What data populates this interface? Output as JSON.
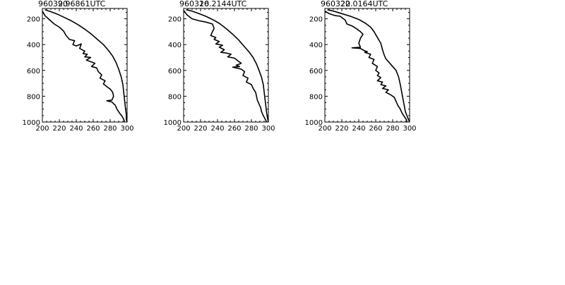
{
  "chart_data": [
    {
      "type": "line",
      "title_left": "960320",
      "title_right": "9.96861UTC",
      "xlim": [
        200,
        300
      ],
      "ylim": [
        1000,
        120
      ],
      "y_reversed": true,
      "xticks": [
        200,
        220,
        240,
        260,
        280,
        300
      ],
      "yticks": [
        200,
        400,
        600,
        800,
        1000
      ],
      "series": [
        {
          "points": [
            [
              203,
              130
            ],
            [
              210,
              145
            ],
            [
              218,
              165
            ],
            [
              226,
              190
            ],
            [
              234,
              215
            ],
            [
              242,
              245
            ],
            [
              250,
              280
            ],
            [
              258,
              320
            ],
            [
              265,
              360
            ],
            [
              272,
              400
            ],
            [
              278,
              445
            ],
            [
              283,
              490
            ],
            [
              287,
              540
            ],
            [
              290,
              590
            ],
            [
              293,
              650
            ],
            [
              295,
              710
            ],
            [
              296,
              770
            ],
            [
              297,
              830
            ],
            [
              298,
              890
            ],
            [
              299,
              940
            ],
            [
              299,
              980
            ],
            [
              300,
              1000
            ]
          ]
        },
        {
          "points": [
            [
              200,
              140
            ],
            [
              203,
              175
            ],
            [
              208,
              205
            ],
            [
              214,
              240
            ],
            [
              220,
              265
            ],
            [
              225,
              295
            ],
            [
              228,
              330
            ],
            [
              232,
              360
            ],
            [
              238,
              370
            ],
            [
              236,
              400
            ],
            [
              240,
              410
            ],
            [
              246,
              395
            ],
            [
              244,
              430
            ],
            [
              250,
              450
            ],
            [
              248,
              470
            ],
            [
              253,
              475
            ],
            [
              250,
              495
            ],
            [
              257,
              500
            ],
            [
              252,
              520
            ],
            [
              258,
              535
            ],
            [
              262,
              545
            ],
            [
              258,
              570
            ],
            [
              264,
              580
            ],
            [
              266,
              610
            ],
            [
              270,
              635
            ],
            [
              268,
              660
            ],
            [
              274,
              680
            ],
            [
              272,
              705
            ],
            [
              276,
              725
            ],
            [
              280,
              745
            ],
            [
              283,
              770
            ],
            [
              284,
              800
            ],
            [
              282,
              830
            ],
            [
              276,
              835
            ],
            [
              282,
              845
            ],
            [
              286,
              870
            ],
            [
              288,
              900
            ],
            [
              291,
              930
            ],
            [
              294,
              955
            ],
            [
              296,
              980
            ],
            [
              297,
              1000
            ]
          ]
        }
      ]
    },
    {
      "type": "line",
      "title_left": "960320",
      "title_right": "16.2144UTC",
      "xlim": [
        200,
        300
      ],
      "ylim": [
        1000,
        120
      ],
      "y_reversed": true,
      "xticks": [
        200,
        220,
        240,
        260,
        280,
        300
      ],
      "yticks": [
        200,
        400,
        600,
        800,
        1000
      ],
      "series": [
        {
          "points": [
            [
              203,
              130
            ],
            [
              210,
              140
            ],
            [
              218,
              160
            ],
            [
              226,
              180
            ],
            [
              234,
              205
            ],
            [
              242,
              235
            ],
            [
              250,
              275
            ],
            [
              258,
              320
            ],
            [
              265,
              365
            ],
            [
              271,
              410
            ],
            [
              277,
              455
            ],
            [
              282,
              500
            ],
            [
              286,
              550
            ],
            [
              289,
              600
            ],
            [
              292,
              655
            ],
            [
              294,
              710
            ],
            [
              295,
              765
            ],
            [
              296,
              820
            ],
            [
              297,
              875
            ],
            [
              298,
              930
            ],
            [
              299,
              970
            ],
            [
              300,
              1000
            ]
          ]
        },
        {
          "points": [
            [
              200,
              135
            ],
            [
              204,
              170
            ],
            [
              210,
              200
            ],
            [
              218,
              215
            ],
            [
              226,
              225
            ],
            [
              234,
              240
            ],
            [
              236,
              275
            ],
            [
              234,
              300
            ],
            [
              232,
              330
            ],
            [
              238,
              345
            ],
            [
              236,
              360
            ],
            [
              242,
              375
            ],
            [
              238,
              395
            ],
            [
              246,
              405
            ],
            [
              242,
              420
            ],
            [
              248,
              440
            ],
            [
              244,
              460
            ],
            [
              250,
              465
            ],
            [
              256,
              475
            ],
            [
              252,
              495
            ],
            [
              260,
              505
            ],
            [
              264,
              525
            ],
            [
              268,
              545
            ],
            [
              262,
              560
            ],
            [
              266,
              570
            ],
            [
              258,
              575
            ],
            [
              268,
              590
            ],
            [
              272,
              610
            ],
            [
              270,
              640
            ],
            [
              276,
              660
            ],
            [
              274,
              690
            ],
            [
              280,
              710
            ],
            [
              282,
              740
            ],
            [
              285,
              770
            ],
            [
              286,
              800
            ],
            [
              287,
              830
            ],
            [
              289,
              860
            ],
            [
              291,
              890
            ],
            [
              292,
              920
            ],
            [
              294,
              950
            ],
            [
              296,
              975
            ],
            [
              298,
              1000
            ]
          ]
        }
      ]
    },
    {
      "type": "line",
      "title_left": "960320",
      "title_right": "22.0164UTC",
      "xlim": [
        200,
        300
      ],
      "ylim": [
        1000,
        120
      ],
      "y_reversed": true,
      "xticks": [
        200,
        220,
        240,
        260,
        280,
        300
      ],
      "yticks": [
        200,
        400,
        600,
        800,
        1000
      ],
      "series": [
        {
          "points": [
            [
              203,
              130
            ],
            [
              210,
              140
            ],
            [
              220,
              160
            ],
            [
              230,
              180
            ],
            [
              240,
              205
            ],
            [
              248,
              235
            ],
            [
              254,
              265
            ],
            [
              258,
              300
            ],
            [
              262,
              345
            ],
            [
              266,
              390
            ],
            [
              268,
              440
            ],
            [
              270,
              480
            ],
            [
              272,
              510
            ],
            [
              276,
              540
            ],
            [
              280,
              570
            ],
            [
              284,
              600
            ],
            [
              287,
              650
            ],
            [
              289,
              710
            ],
            [
              291,
              780
            ],
            [
              293,
              850
            ],
            [
              295,
              920
            ],
            [
              298,
              970
            ],
            [
              300,
              1000
            ]
          ]
        },
        {
          "points": [
            [
              200,
              140
            ],
            [
              205,
              160
            ],
            [
              212,
              175
            ],
            [
              218,
              180
            ],
            [
              224,
              210
            ],
            [
              226,
              240
            ],
            [
              232,
              255
            ],
            [
              238,
              280
            ],
            [
              242,
              300
            ],
            [
              245,
              320
            ],
            [
              242,
              350
            ],
            [
              240,
              390
            ],
            [
              242,
              420
            ],
            [
              232,
              425
            ],
            [
              242,
              430
            ],
            [
              246,
              445
            ],
            [
              250,
              455
            ],
            [
              247,
              460
            ],
            [
              254,
              475
            ],
            [
              252,
              500
            ],
            [
              258,
              515
            ],
            [
              256,
              545
            ],
            [
              262,
              570
            ],
            [
              260,
              600
            ],
            [
              264,
              620
            ],
            [
              262,
              640
            ],
            [
              266,
              655
            ],
            [
              262,
              680
            ],
            [
              268,
              690
            ],
            [
              266,
              710
            ],
            [
              272,
              720
            ],
            [
              268,
              740
            ],
            [
              275,
              750
            ],
            [
              272,
              770
            ],
            [
              278,
              790
            ],
            [
              282,
              810
            ],
            [
              284,
              840
            ],
            [
              286,
              870
            ],
            [
              289,
              900
            ],
            [
              291,
              930
            ],
            [
              294,
              960
            ],
            [
              296,
              980
            ],
            [
              297,
              1000
            ]
          ]
        }
      ]
    }
  ]
}
